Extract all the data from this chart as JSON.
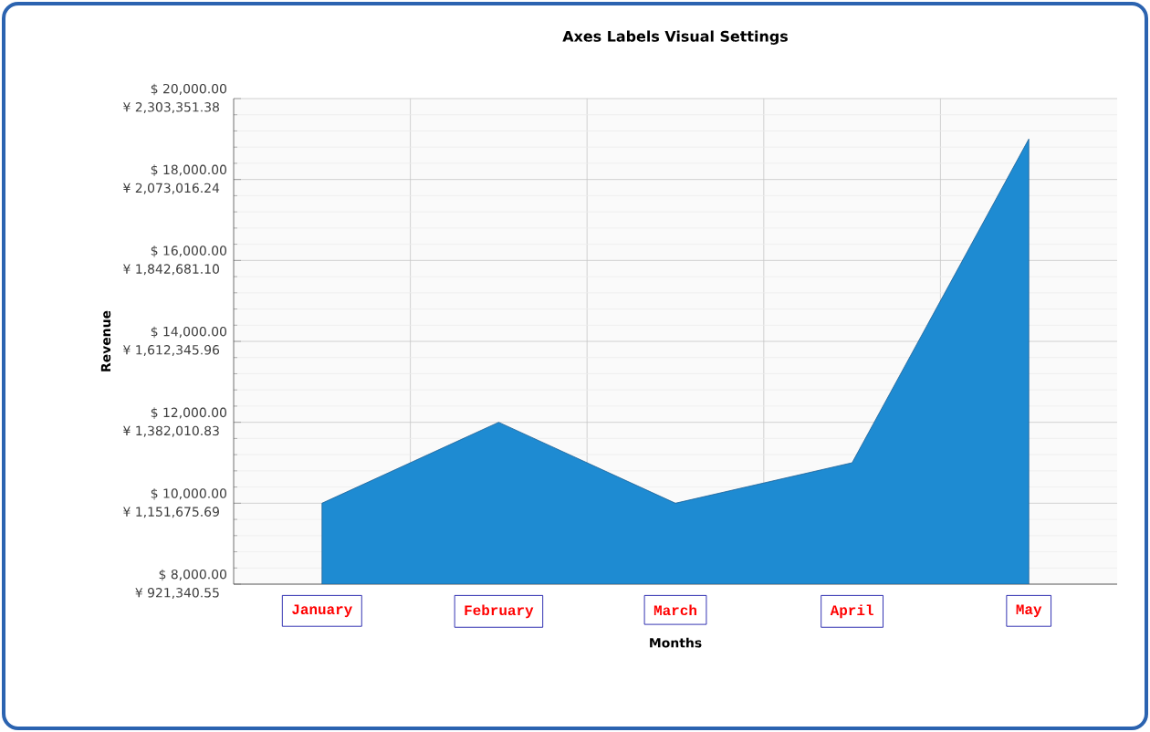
{
  "chart_data": {
    "type": "area",
    "title": "Axes Labels Visual Settings",
    "xlabel": "Months",
    "ylabel": "Revenue",
    "categories": [
      "January",
      "February",
      "March",
      "April",
      "May"
    ],
    "series": [
      {
        "color": "#1e8bd2",
        "axis": "y2",
        "values": [
          10000,
          12000,
          10000,
          11000,
          19000
        ]
      }
    ],
    "y2lim": [
      8000,
      20000
    ],
    "y2ticks": [
      {
        "value": 8000,
        "label": "$ 8,000.00"
      },
      {
        "value": 10000,
        "label": "$ 10,000.00"
      },
      {
        "value": 12000,
        "label": "$ 12,000.00"
      },
      {
        "value": 14000,
        "label": "$ 14,000.00"
      },
      {
        "value": 16000,
        "label": "$ 16,000.00"
      },
      {
        "value": 18000,
        "label": "$ 18,000.00"
      },
      {
        "value": 20000,
        "label": "$ 20,000.00"
      }
    ],
    "ylim": [
      921340.55,
      2303351.38
    ],
    "yticks": [
      {
        "value": 921340.55,
        "label": "¥ 921,340.55"
      },
      {
        "value": 1151675.69,
        "label": "¥ 1,151,675.69"
      },
      {
        "value": 1382010.83,
        "label": "¥ 1,382,010.83"
      },
      {
        "value": 1612345.96,
        "label": "¥ 1,612,345.96"
      },
      {
        "value": 1842681.1,
        "label": "¥ 1,842,681.10"
      },
      {
        "value": 2073016.24,
        "label": "¥ 2,073,016.24"
      },
      {
        "value": 2303351.38,
        "label": "¥ 2,303,351.38"
      }
    ],
    "grid": true
  }
}
